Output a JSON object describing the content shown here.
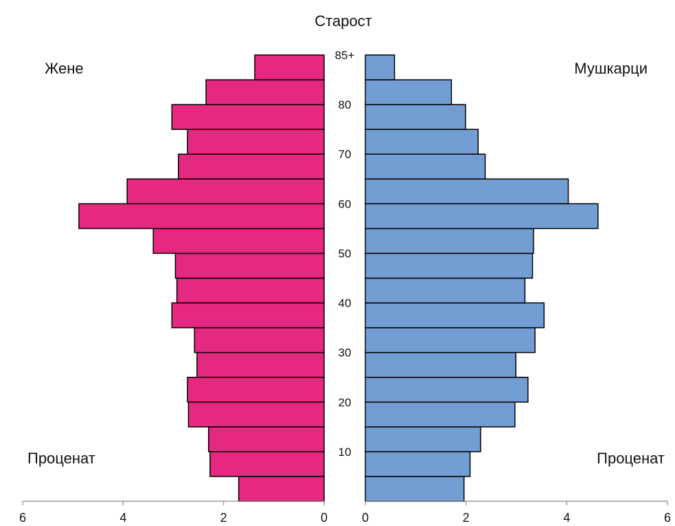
{
  "chart_data": {
    "type": "bar",
    "orientation": "horizontal",
    "subtype": "population-pyramid",
    "title": "Старост",
    "age_group_tick_labels": [
      "",
      "10",
      "",
      "20",
      "",
      "30",
      "",
      "40",
      "",
      "50",
      "",
      "60",
      "",
      "70",
      "",
      "80",
      "",
      "85+"
    ],
    "series": [
      {
        "name": "Жене",
        "side": "left",
        "color": "#E52880",
        "values": [
          1.7,
          2.27,
          2.3,
          2.7,
          2.72,
          2.53,
          2.58,
          3.03,
          2.93,
          2.96,
          3.4,
          4.88,
          3.92,
          2.9,
          2.72,
          3.03,
          2.35,
          1.38
        ]
      },
      {
        "name": "Мушкарци",
        "side": "right",
        "color": "#739ED4",
        "values": [
          1.96,
          2.08,
          2.29,
          2.97,
          3.23,
          2.99,
          3.37,
          3.55,
          3.17,
          3.32,
          3.34,
          4.62,
          4.03,
          2.38,
          2.24,
          1.99,
          1.71,
          0.58
        ]
      }
    ],
    "xlabel_left": "Проценат",
    "xlabel_right": "Проценат",
    "xlim": [
      0,
      6
    ],
    "xticks": [
      0,
      2,
      4,
      6
    ],
    "grid": false
  }
}
